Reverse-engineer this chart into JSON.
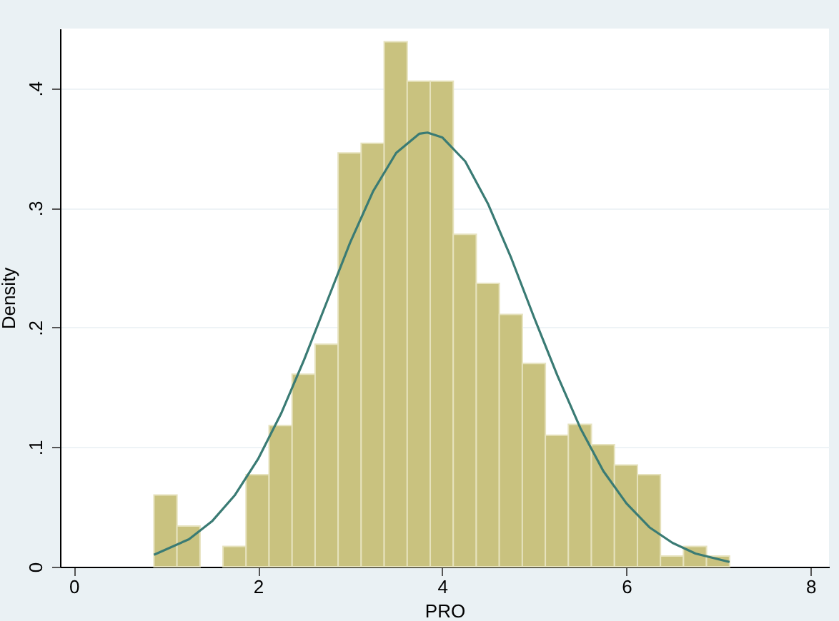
{
  "chart_data": {
    "type": "histogram",
    "xlabel": "PRO",
    "ylabel": "Density",
    "bins": [
      0.87,
      1.12,
      1.37,
      1.62,
      1.87,
      2.12,
      2.37,
      2.62,
      2.87,
      3.12,
      3.37,
      3.62,
      3.87,
      4.12,
      4.37,
      4.62,
      4.87,
      5.12,
      5.37,
      5.62,
      5.87,
      6.12,
      6.37,
      6.62,
      6.87,
      7.12
    ],
    "values": [
      0.06,
      0.034,
      0,
      0.017,
      0.077,
      0.118,
      0.161,
      0.186,
      0.346,
      0.354,
      0.439,
      0.406,
      0.406,
      0.278,
      0.237,
      0.211,
      0.17,
      0.11,
      0.119,
      0.102,
      0.085,
      0.077,
      0.009,
      0.017,
      0.009
    ],
    "color": "#c9c27f",
    "series": [
      {
        "type": "line",
        "color": "#3a7b74",
        "x": [
          0.87,
          1.25,
          1.5,
          1.75,
          2,
          2.25,
          2.5,
          2.75,
          3,
          3.25,
          3.5,
          3.75,
          3.84,
          4,
          4.25,
          4.5,
          4.75,
          5,
          5.25,
          5.5,
          5.75,
          6,
          6.25,
          6.5,
          6.75,
          7.12
        ],
        "values": [
          0.01,
          0.023,
          0.038,
          0.06,
          0.09,
          0.128,
          0.173,
          0.222,
          0.271,
          0.314,
          0.346,
          0.362,
          0.363,
          0.359,
          0.339,
          0.303,
          0.258,
          0.208,
          0.16,
          0.116,
          0.08,
          0.053,
          0.033,
          0.02,
          0.011,
          0.004
        ]
      }
    ],
    "xlim": [
      -0.15,
      8.2
    ],
    "ylim": [
      0,
      0.45
    ],
    "xticks": [
      0,
      2,
      4,
      6,
      8
    ],
    "yticks": [
      0,
      {
        "value": 0.1,
        "label": ".1"
      },
      {
        "value": 0.2,
        "label": ".2"
      },
      {
        "value": 0.3,
        "label": ".3"
      },
      {
        "value": 0.4,
        "label": ".4"
      }
    ],
    "grid": "y"
  }
}
